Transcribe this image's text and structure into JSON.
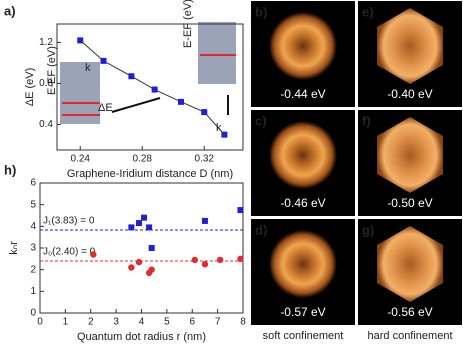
{
  "chart_data": [
    {
      "type": "line",
      "label": "a)",
      "x_label": "Graphene-Iridium distance D (nm)",
      "y_label": "ΔE (eV)",
      "x": [
        0.24,
        0.255,
        0.273,
        0.288,
        0.305,
        0.32,
        0.333
      ],
      "series": [
        {
          "color": "#1f1fd8",
          "values": [
            1.22,
            1.02,
            0.87,
            0.74,
            0.62,
            0.52,
            0.3
          ]
        }
      ],
      "xlim": [
        0.225,
        0.345
      ],
      "xticks": [
        0.24,
        0.28,
        0.32
      ],
      "ylim": [
        0.15,
        1.38
      ],
      "yticks": [
        0.4,
        0.8,
        1.2
      ],
      "annotations": [
        "k",
        "ΔE",
        "E-EF (eV)",
        "E-EF (eV)",
        "k"
      ]
    },
    {
      "type": "scatter",
      "label": "h)",
      "x_label": "Quantum dot radius r (nm)",
      "y_label": "kₙr",
      "series": [
        {
          "color": "#1f1fd8",
          "marker": "square",
          "x": [
            3.6,
            3.9,
            4.1,
            4.3,
            4.4,
            6.5,
            7.9
          ],
          "values": [
            3.95,
            4.15,
            4.4,
            3.95,
            3.0,
            4.25,
            4.75
          ]
        },
        {
          "color": "#e02c2c",
          "marker": "circle",
          "x": [
            2.1,
            3.6,
            3.9,
            4.3,
            4.4,
            6.1,
            6.5,
            7.1,
            7.9
          ],
          "values": [
            2.7,
            2.1,
            2.35,
            1.85,
            2.0,
            2.45,
            2.25,
            2.45,
            2.5
          ]
        }
      ],
      "hlines": [
        {
          "value": 3.83,
          "label": "J₁(3.83) = 0",
          "color": "#1f1fd8"
        },
        {
          "value": 2.4,
          "label": "J₀(2.40) = 0",
          "color": "#e02c2c"
        }
      ],
      "xlim": [
        0,
        8
      ],
      "xticks": [
        0,
        1,
        2,
        3,
        4,
        5,
        6,
        7,
        8
      ],
      "ylim": [
        0,
        6
      ],
      "yticks": [
        0,
        1,
        2,
        3,
        4,
        5,
        6
      ]
    }
  ],
  "panels": [
    {
      "label": "b)",
      "energy": "-0.44 eV",
      "kind": "soft"
    },
    {
      "label": "e)",
      "energy": "-0.40 eV",
      "kind": "hard"
    },
    {
      "label": "c)",
      "energy": "-0.46 eV",
      "kind": "soft"
    },
    {
      "label": "f)",
      "energy": "-0.50 eV",
      "kind": "hard"
    },
    {
      "label": "d)",
      "energy": "-0.57 eV",
      "kind": "soft"
    },
    {
      "label": "g)",
      "energy": "-0.56 eV",
      "kind": "hard"
    }
  ],
  "captions": [
    "soft confinement",
    "hard confinement"
  ]
}
